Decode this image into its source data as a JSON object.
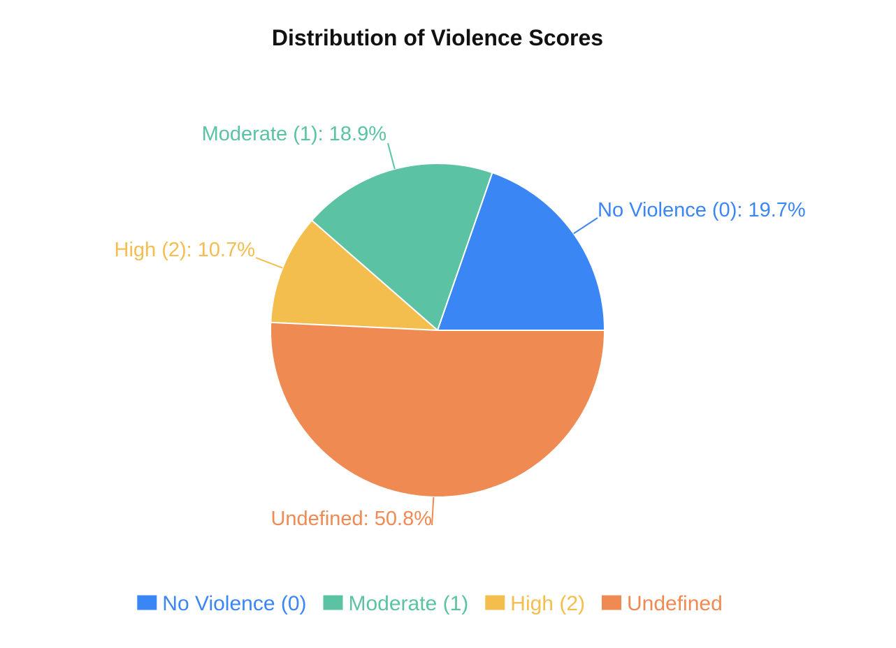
{
  "chart_data": {
    "type": "pie",
    "title": "Distribution of Violence Scores",
    "slices": [
      {
        "name": "No Violence (0)",
        "value": 19.7,
        "label": "No Violence (0): 19.7%",
        "color": "#3b86f5"
      },
      {
        "name": "Moderate (1)",
        "value": 18.9,
        "label": "Moderate (1): 18.9%",
        "color": "#5bc3a3"
      },
      {
        "name": "High (2)",
        "value": 10.7,
        "label": "High (2): 10.7%",
        "color": "#f4be4f"
      },
      {
        "name": "Undefined",
        "value": 50.8,
        "label": "Undefined: 50.8%",
        "color": "#ef8a52"
      }
    ],
    "legend": {
      "placement": "bottom",
      "entries": [
        "No Violence (0)",
        "Moderate (1)",
        "High (2)",
        "Undefined"
      ]
    },
    "start_direction": "east",
    "order": "counterclockwise"
  }
}
